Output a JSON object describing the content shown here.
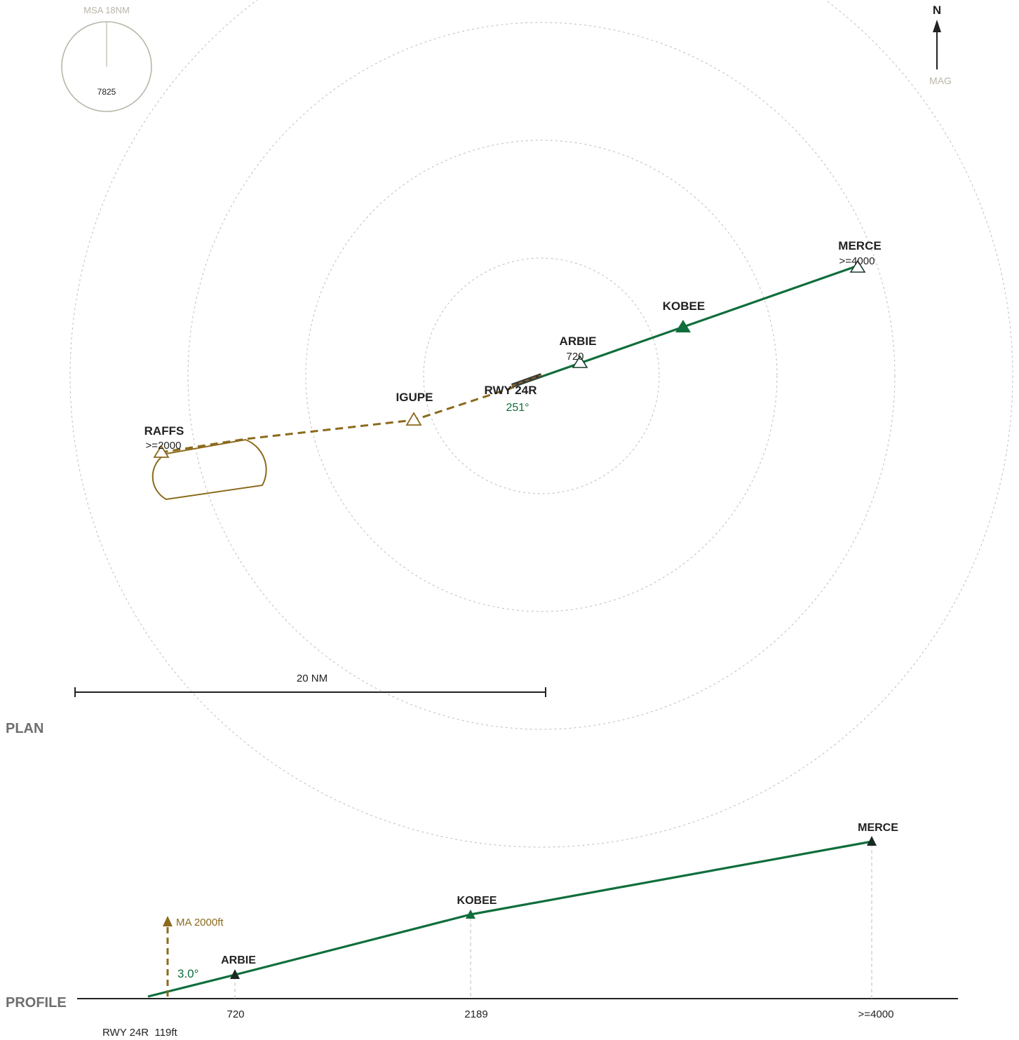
{
  "colors": {
    "approach": "#0f6e3c",
    "missed": "#8b6a1c",
    "ring": "#bdbdbd",
    "msa": "#b9b6a8",
    "text": "#222222",
    "section": "#6e6e6e"
  },
  "msa": {
    "label": "MSA 18NM",
    "value": "7825"
  },
  "north": {
    "letter": "N",
    "ref": "MAG"
  },
  "plan": {
    "section_label": "PLAN",
    "scale_label": "20 NM",
    "runway": {
      "label": "RWY 24R",
      "course": "251°"
    },
    "waypoints": [
      {
        "name": "MERCE",
        "alt": ">=4000"
      },
      {
        "name": "KOBEE",
        "alt": ""
      },
      {
        "name": "ARBIE",
        "alt": "720"
      },
      {
        "name": "IGUPE",
        "alt": ""
      },
      {
        "name": "RAFFS",
        "alt": ">=2000"
      }
    ]
  },
  "profile": {
    "section_label": "PROFILE",
    "missed_approach": "MA 2000ft",
    "glide_angle": "3.0°",
    "runway_label": "RWY 24R  119ft",
    "fixes": [
      {
        "name": "ARBIE",
        "alt": "720"
      },
      {
        "name": "KOBEE",
        "alt": "2189"
      },
      {
        "name": "MERCE",
        "alt": ">=4000"
      }
    ]
  }
}
